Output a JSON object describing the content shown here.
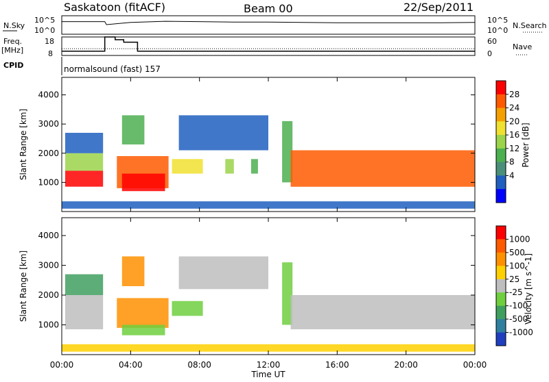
{
  "header": {
    "station": "Saskatoon (fitACF)",
    "beam": "Beam 00",
    "date": "22/Sep/2011"
  },
  "noise_panel": {
    "left_label": "N.Sky",
    "left_ticks": [
      "10^5",
      "10^0"
    ],
    "right_ticks": [
      "10^5",
      "10^0"
    ],
    "right_label": "N.Search"
  },
  "freq_panel": {
    "left_label_1": "Freq.",
    "left_label_2": "[MHz]",
    "left_ticks": [
      "18",
      "8"
    ],
    "right_ticks": [
      "60",
      "0"
    ],
    "right_label": "Nave"
  },
  "cpid": {
    "label": "CPID",
    "value": "normalsound (fast) 157"
  },
  "time_axis": {
    "ticks": [
      "00:00",
      "04:00",
      "08:00",
      "12:00",
      "16:00",
      "20:00",
      "00:00"
    ],
    "label": "Time UT"
  },
  "chart_data": [
    {
      "type": "line",
      "name": "noise",
      "x_unit": "hours UT",
      "x": [
        0,
        2.5,
        2.6,
        4,
        6,
        8,
        10,
        12,
        14,
        16,
        18,
        20,
        22,
        24
      ],
      "series": [
        {
          "name": "N.Sky",
          "values": [
            3.4,
            3.4,
            2.6,
            3.2,
            3.5,
            3.4,
            3.3,
            3.3,
            3.2,
            3.1,
            3.1,
            3.1,
            3.1,
            3.2
          ]
        }
      ],
      "ylim_log10": [
        0,
        5
      ]
    },
    {
      "type": "line",
      "name": "frequency",
      "x_unit": "hours UT",
      "x": [
        0,
        2.5,
        2.5,
        3.1,
        3.1,
        3.6,
        3.6,
        4.4,
        4.4,
        24
      ],
      "series": [
        {
          "name": "Freq.",
          "values": [
            10.3,
            10.3,
            18,
            18,
            16.5,
            16.5,
            15.2,
            15.2,
            10.3,
            10.3
          ]
        },
        {
          "name": "Nave",
          "values": [
            22,
            22,
            22,
            22,
            22,
            22,
            22,
            22,
            22,
            22
          ]
        }
      ],
      "ylim": [
        8,
        18
      ],
      "ylim_right": [
        0,
        60
      ]
    },
    {
      "type": "heatmap",
      "name": "power",
      "ylabel": "Slant Range [km]",
      "xlabel": "Time UT",
      "xlim": [
        0,
        24
      ],
      "ylim": [
        0,
        4600
      ],
      "yticks": [
        1000,
        2000,
        3000,
        4000
      ],
      "colorbar": {
        "label": "Power [dB]",
        "ticks": [
          "28",
          "24",
          "20",
          "16",
          "12",
          "8",
          "4"
        ],
        "colors": [
          "#0000ff",
          "#1f5fbf",
          "#4a8f7a",
          "#4caf50",
          "#9bd34a",
          "#f0e030",
          "#f5a000",
          "#ff5a00",
          "#ff0000"
        ]
      },
      "regions": [
        {
          "t0": 0.2,
          "t1": 2.4,
          "r0": 850,
          "r1": 1400,
          "level": 8
        },
        {
          "t0": 0.2,
          "t1": 2.4,
          "r0": 1400,
          "r1": 2000,
          "level": 4
        },
        {
          "t0": 0.2,
          "t1": 2.4,
          "r0": 2000,
          "r1": 2700,
          "level": 1
        },
        {
          "t0": 3.2,
          "t1": 6.2,
          "r0": 800,
          "r1": 1900,
          "level": 7
        },
        {
          "t0": 3.5,
          "t1": 6.0,
          "r0": 700,
          "r1": 1300,
          "level": 8
        },
        {
          "t0": 3.5,
          "t1": 4.8,
          "r0": 2300,
          "r1": 3300,
          "level": 3
        },
        {
          "t0": 6.4,
          "t1": 8.2,
          "r0": 1300,
          "r1": 1800,
          "level": 5
        },
        {
          "t0": 6.8,
          "t1": 12.0,
          "r0": 2100,
          "r1": 3300,
          "level": 1
        },
        {
          "t0": 9.5,
          "t1": 10.0,
          "r0": 1300,
          "r1": 1800,
          "level": 4
        },
        {
          "t0": 11.0,
          "t1": 11.4,
          "r0": 1300,
          "r1": 1800,
          "level": 3
        },
        {
          "t0": 12.8,
          "t1": 13.4,
          "r0": 1000,
          "r1": 3100,
          "level": 3
        },
        {
          "t0": 13.3,
          "t1": 24.0,
          "r0": 850,
          "r1": 2100,
          "level": 7
        },
        {
          "t0": 0.0,
          "t1": 24.0,
          "r0": 100,
          "r1": 350,
          "level": 1
        }
      ]
    },
    {
      "type": "heatmap",
      "name": "velocity",
      "ylabel": "Slant Range [km]",
      "xlabel": "Time UT",
      "xlim": [
        0,
        24
      ],
      "ylim": [
        0,
        4600
      ],
      "yticks": [
        1000,
        2000,
        3000,
        4000
      ],
      "colorbar": {
        "label": "Velocity [m s^-1]",
        "ticks": [
          "1000",
          "500",
          "100",
          "25",
          "-25",
          "-100",
          "-500",
          "-1000"
        ],
        "colors": [
          "#1f3fbf",
          "#2f7f9f",
          "#3f9f5f",
          "#6fcf3f",
          "#bebebe",
          "#ffd000",
          "#ff9000",
          "#ff5a00",
          "#ff0000"
        ]
      },
      "regions": [
        {
          "t0": 0.2,
          "t1": 2.4,
          "r0": 850,
          "r1": 2000,
          "level": 4
        },
        {
          "t0": 0.2,
          "t1": 2.4,
          "r0": 2000,
          "r1": 2700,
          "level": 2
        },
        {
          "t0": 3.2,
          "t1": 6.2,
          "r0": 900,
          "r1": 1900,
          "level": 6
        },
        {
          "t0": 3.5,
          "t1": 6.0,
          "r0": 650,
          "r1": 1000,
          "level": 3
        },
        {
          "t0": 3.5,
          "t1": 4.8,
          "r0": 2300,
          "r1": 3300,
          "level": 6
        },
        {
          "t0": 6.4,
          "t1": 8.2,
          "r0": 1300,
          "r1": 1800,
          "level": 3
        },
        {
          "t0": 6.8,
          "t1": 12.0,
          "r0": 2200,
          "r1": 3300,
          "level": 4
        },
        {
          "t0": 12.8,
          "t1": 13.4,
          "r0": 1000,
          "r1": 3100,
          "level": 3
        },
        {
          "t0": 13.3,
          "t1": 24.0,
          "r0": 850,
          "r1": 2000,
          "level": 4
        },
        {
          "t0": 0.0,
          "t1": 24.0,
          "r0": 100,
          "r1": 350,
          "level": 5
        }
      ]
    }
  ]
}
